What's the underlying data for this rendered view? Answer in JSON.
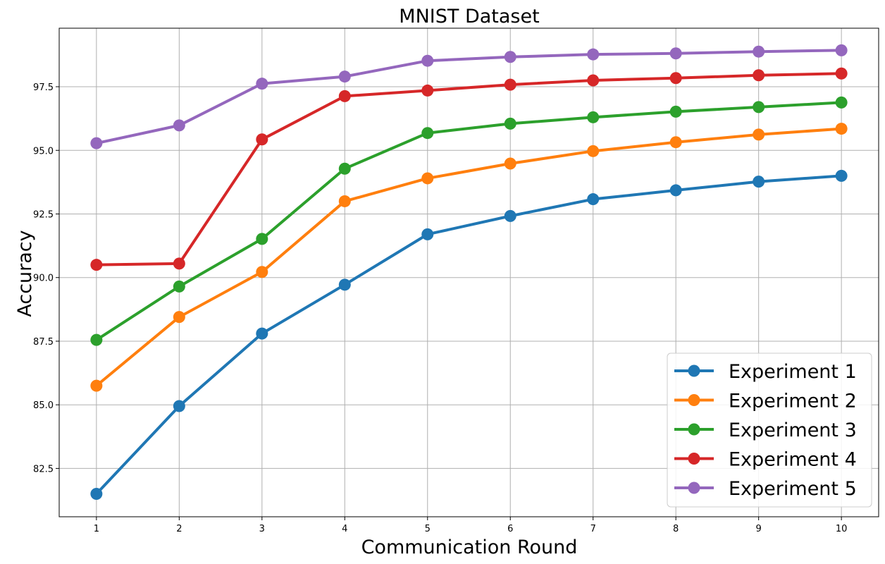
{
  "chart_data": {
    "type": "line",
    "title": "MNIST Dataset",
    "xlabel": "Communication Round",
    "ylabel": "Accuracy",
    "x": [
      1,
      2,
      3,
      4,
      5,
      6,
      7,
      8,
      9,
      10
    ],
    "xticks": [
      "1",
      "2",
      "3",
      "4",
      "5",
      "6",
      "7",
      "8",
      "9",
      "10"
    ],
    "yticks": [
      "82.5",
      "85.0",
      "87.5",
      "90.0",
      "92.5",
      "95.0",
      "97.5"
    ],
    "ylim": [
      80.6,
      99.8
    ],
    "xlim": [
      0.55,
      10.45
    ],
    "grid": true,
    "legend_position": "bottom-right",
    "series": [
      {
        "name": "Experiment 1",
        "color": "#1f77b4",
        "values": [
          81.5,
          84.95,
          87.8,
          89.72,
          91.7,
          92.42,
          93.08,
          93.43,
          93.77,
          94.0
        ]
      },
      {
        "name": "Experiment 2",
        "color": "#ff7f0e",
        "values": [
          85.75,
          88.45,
          90.22,
          93.0,
          93.9,
          94.48,
          94.97,
          95.32,
          95.62,
          95.85
        ]
      },
      {
        "name": "Experiment 3",
        "color": "#2ca02c",
        "values": [
          87.55,
          89.65,
          91.52,
          94.28,
          95.68,
          96.05,
          96.3,
          96.52,
          96.7,
          96.88
        ]
      },
      {
        "name": "Experiment 4",
        "color": "#d62728",
        "values": [
          90.5,
          90.55,
          95.43,
          97.13,
          97.35,
          97.58,
          97.75,
          97.84,
          97.95,
          98.02
        ]
      },
      {
        "name": "Experiment 5",
        "color": "#9467bd",
        "values": [
          95.28,
          95.98,
          97.62,
          97.9,
          98.52,
          98.67,
          98.77,
          98.81,
          98.88,
          98.93
        ]
      }
    ]
  }
}
